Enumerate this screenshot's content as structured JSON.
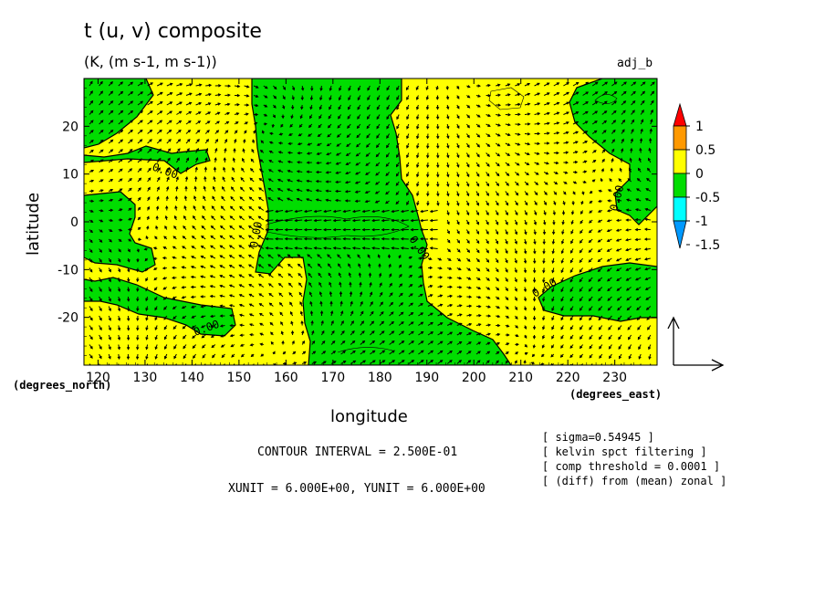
{
  "title": "t (u, v) composite",
  "subtitle": "(K, (m s-1, m s-1))",
  "tag": "adj_b",
  "xlabel": "longitude",
  "ylabel": "latitude",
  "x_unit": "(degrees_east)",
  "y_unit": "(degrees_north)",
  "contour_interval": "CONTOUR INTERVAL = 2.500E-01",
  "xy_unit": "XUNIT = 6.000E+00, YUNIT = 6.000E+00",
  "notes": [
    "[ sigma=0.54945 ]",
    "[ kelvin spct filtering ]",
    "[ comp threshold = 0.0001 ]",
    "[ (diff) from (mean) zonal ]"
  ],
  "colors": {
    "positive": "#ffff00",
    "negative": "#00dd00",
    "c1": "#ff0000",
    "c05": "#ff9900",
    "c0": "#ffff00",
    "cm05": "#00dd00",
    "cm1": "#00ffff",
    "cm15": "#0099ff"
  },
  "chart_data": {
    "type": "heatmap",
    "xlim": [
      117,
      239
    ],
    "ylim": [
      -30,
      30
    ],
    "x_ticks": [
      120,
      130,
      140,
      150,
      160,
      170,
      180,
      190,
      200,
      210,
      220,
      230
    ],
    "y_ticks": [
      20,
      10,
      0,
      -10,
      -20
    ],
    "contour_labels": [
      "0.00",
      "0.00",
      "0.00",
      "0.00",
      "0.00",
      "0.00"
    ],
    "colorbar": {
      "labels": [
        "1",
        "0.5",
        "0",
        "-0.5",
        "-1",
        "-1.5"
      ],
      "levels": [
        1,
        0.5,
        0,
        -0.5,
        -1,
        -1.5
      ]
    },
    "vector_field": "u, v wind vectors over the domain",
    "grid": false
  }
}
